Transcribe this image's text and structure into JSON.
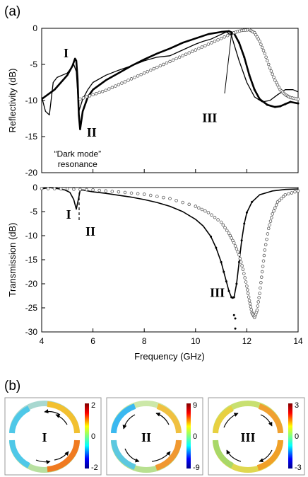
{
  "panel_labels": {
    "a": "(a)",
    "b": "(b)"
  },
  "chart_data": [
    {
      "type": "line",
      "ylabel": "Reflectivity (dB)",
      "xlim": [
        4,
        14
      ],
      "ylim": [
        -20,
        0
      ],
      "x_ticks": [
        4,
        6,
        8,
        10,
        12,
        14
      ],
      "y_ticks": [
        0,
        -5,
        -10,
        -15,
        -20
      ],
      "grid": false,
      "series": [
        {
          "style": "solid-thin",
          "x": [
            4.0,
            4.15,
            4.3,
            4.45,
            4.6,
            4.8,
            5.0,
            5.15,
            5.25,
            5.35,
            5.45,
            5.6,
            5.8,
            6.0,
            6.5,
            7.0,
            7.5,
            8.0,
            8.5,
            9.0,
            9.5,
            10.0,
            10.3,
            10.6,
            10.9,
            11.2,
            11.4,
            11.5,
            11.7,
            12.0,
            12.3,
            12.6,
            12.9,
            13.2,
            13.5,
            13.8,
            14.0
          ],
          "y": [
            -9.5,
            -11.5,
            -12.0,
            -7.5,
            -6.8,
            -6.5,
            -6.2,
            -5.5,
            -5.0,
            -6.0,
            -11.5,
            -9.8,
            -8.5,
            -7.5,
            -6.5,
            -5.8,
            -5.2,
            -4.5,
            -4.0,
            -3.8,
            -3.0,
            -2.2,
            -1.8,
            -1.5,
            -1.0,
            -0.5,
            -1.0,
            -2.2,
            -4.5,
            -7.5,
            -9.5,
            -10.2,
            -10.0,
            -9.2,
            -8.5,
            -8.5,
            -8.8
          ]
        },
        {
          "style": "solid-thick",
          "x": [
            4.0,
            4.5,
            5.0,
            5.2,
            5.3,
            5.35,
            5.4,
            5.45,
            5.5,
            5.6,
            5.8,
            6.0,
            6.5,
            7.0,
            7.5,
            8.0,
            8.5,
            9.0,
            9.5,
            10.0,
            10.5,
            11.0,
            11.3,
            11.5,
            11.7,
            11.9,
            12.1,
            12.3,
            12.5,
            12.8,
            13.1,
            13.3,
            13.5,
            13.7,
            14.0
          ],
          "y": [
            -9.8,
            -8.5,
            -6.5,
            -5.2,
            -4.2,
            -4.5,
            -7.0,
            -12.0,
            -14.0,
            -11.5,
            -9.5,
            -8.5,
            -7.2,
            -6.2,
            -5.2,
            -4.3,
            -3.5,
            -2.8,
            -2.0,
            -1.4,
            -0.8,
            -0.5,
            -0.4,
            -0.7,
            -2.0,
            -4.0,
            -6.5,
            -8.5,
            -9.8,
            -10.6,
            -10.9,
            -10.8,
            -10.5,
            -10.2,
            -10.4
          ]
        },
        {
          "style": "open-circles",
          "x": [
            5.5,
            6.0,
            6.5,
            7.0,
            7.5,
            8.0,
            8.5,
            9.0,
            9.5,
            10.0,
            10.5,
            11.0,
            11.5,
            11.8,
            12.1,
            12.3,
            12.5,
            12.7,
            12.9,
            13.1,
            13.3,
            13.5,
            13.7,
            14.0
          ],
          "y": [
            -9.8,
            -9.2,
            -8.6,
            -7.8,
            -7.0,
            -6.2,
            -5.4,
            -4.6,
            -3.8,
            -3.0,
            -2.2,
            -1.4,
            -0.6,
            -0.3,
            -0.2,
            -0.6,
            -1.8,
            -3.5,
            -5.5,
            -7.2,
            -8.5,
            -9.2,
            -9.6,
            -9.8
          ]
        }
      ],
      "annotations": [
        {
          "text": "I",
          "x": 4.95,
          "y": -4.0
        },
        {
          "text": "II",
          "x": 5.95,
          "y": -15.0
        },
        {
          "text": "III",
          "x": 10.55,
          "y": -13.0
        },
        {
          "text": "“Dark mode”",
          "x": 5.4,
          "y": -17.8
        },
        {
          "text": "resonance",
          "x": 5.4,
          "y": -19.2
        }
      ]
    },
    {
      "type": "line",
      "ylabel": "Transmission (dB)",
      "xlabel": "Frequency (GHz)",
      "xlim": [
        4,
        14
      ],
      "ylim": [
        -30,
        0
      ],
      "x_ticks": [
        4,
        6,
        8,
        10,
        12,
        14
      ],
      "y_ticks": [
        0,
        -5,
        -10,
        -15,
        -20,
        -25,
        -30
      ],
      "grid": false,
      "series": [
        {
          "style": "solid",
          "x": [
            4.0,
            4.3,
            4.6,
            4.9,
            5.1,
            5.25,
            5.35,
            5.45,
            5.5,
            5.6,
            5.8,
            6.0,
            6.5,
            7.0,
            7.5,
            8.0,
            8.5,
            9.0,
            9.5,
            10.0,
            10.3,
            10.6,
            10.8,
            11.0,
            11.1,
            11.2,
            11.3,
            11.4,
            11.5,
            11.6,
            11.7,
            11.8,
            11.9,
            12.0,
            12.2,
            12.5,
            13.0,
            13.5,
            14.0
          ],
          "y": [
            -0.3,
            0.0,
            -0.2,
            -0.5,
            -1.0,
            -2.5,
            -4.5,
            -2.0,
            -0.6,
            -0.5,
            -0.7,
            -0.9,
            -1.2,
            -1.6,
            -2.0,
            -2.5,
            -3.1,
            -3.9,
            -5.0,
            -6.6,
            -8.0,
            -10.2,
            -12.5,
            -15.5,
            -17.5,
            -19.5,
            -21.5,
            -22.8,
            -22.8,
            -20.0,
            -15.5,
            -11.0,
            -7.5,
            -5.2,
            -3.0,
            -1.5,
            -0.7,
            -0.4,
            -0.3
          ]
        },
        {
          "style": "open-circles",
          "x": [
            4.0,
            5.0,
            6.0,
            7.0,
            8.0,
            9.0,
            10.0,
            10.5,
            11.0,
            11.3,
            11.5,
            11.7,
            11.85,
            12.0,
            12.1,
            12.2,
            12.3,
            12.4,
            12.5,
            12.6,
            12.7,
            12.85,
            13.0,
            13.2,
            13.5,
            14.0
          ],
          "y": [
            -0.2,
            -0.3,
            -0.5,
            -0.9,
            -1.4,
            -2.3,
            -3.9,
            -5.2,
            -7.2,
            -9.5,
            -11.5,
            -14.0,
            -17.0,
            -20.5,
            -23.5,
            -26.0,
            -27.0,
            -25.5,
            -22.0,
            -17.5,
            -13.0,
            -8.5,
            -5.5,
            -3.0,
            -1.5,
            -0.7
          ]
        }
      ],
      "annotations": [
        {
          "text": "I",
          "x": 5.05,
          "y": -6.5
        },
        {
          "text": "II",
          "x": 5.9,
          "y": -10.0
        },
        {
          "text": "III",
          "x": 10.85,
          "y": -22.7
        }
      ]
    }
  ],
  "field_maps": [
    {
      "label": "I",
      "colorbar_ticks": [
        "2",
        "0",
        "-2"
      ]
    },
    {
      "label": "II",
      "colorbar_ticks": [
        "9",
        "0",
        "-9"
      ]
    },
    {
      "label": "III",
      "colorbar_ticks": [
        "3",
        "0",
        "-3"
      ]
    }
  ]
}
